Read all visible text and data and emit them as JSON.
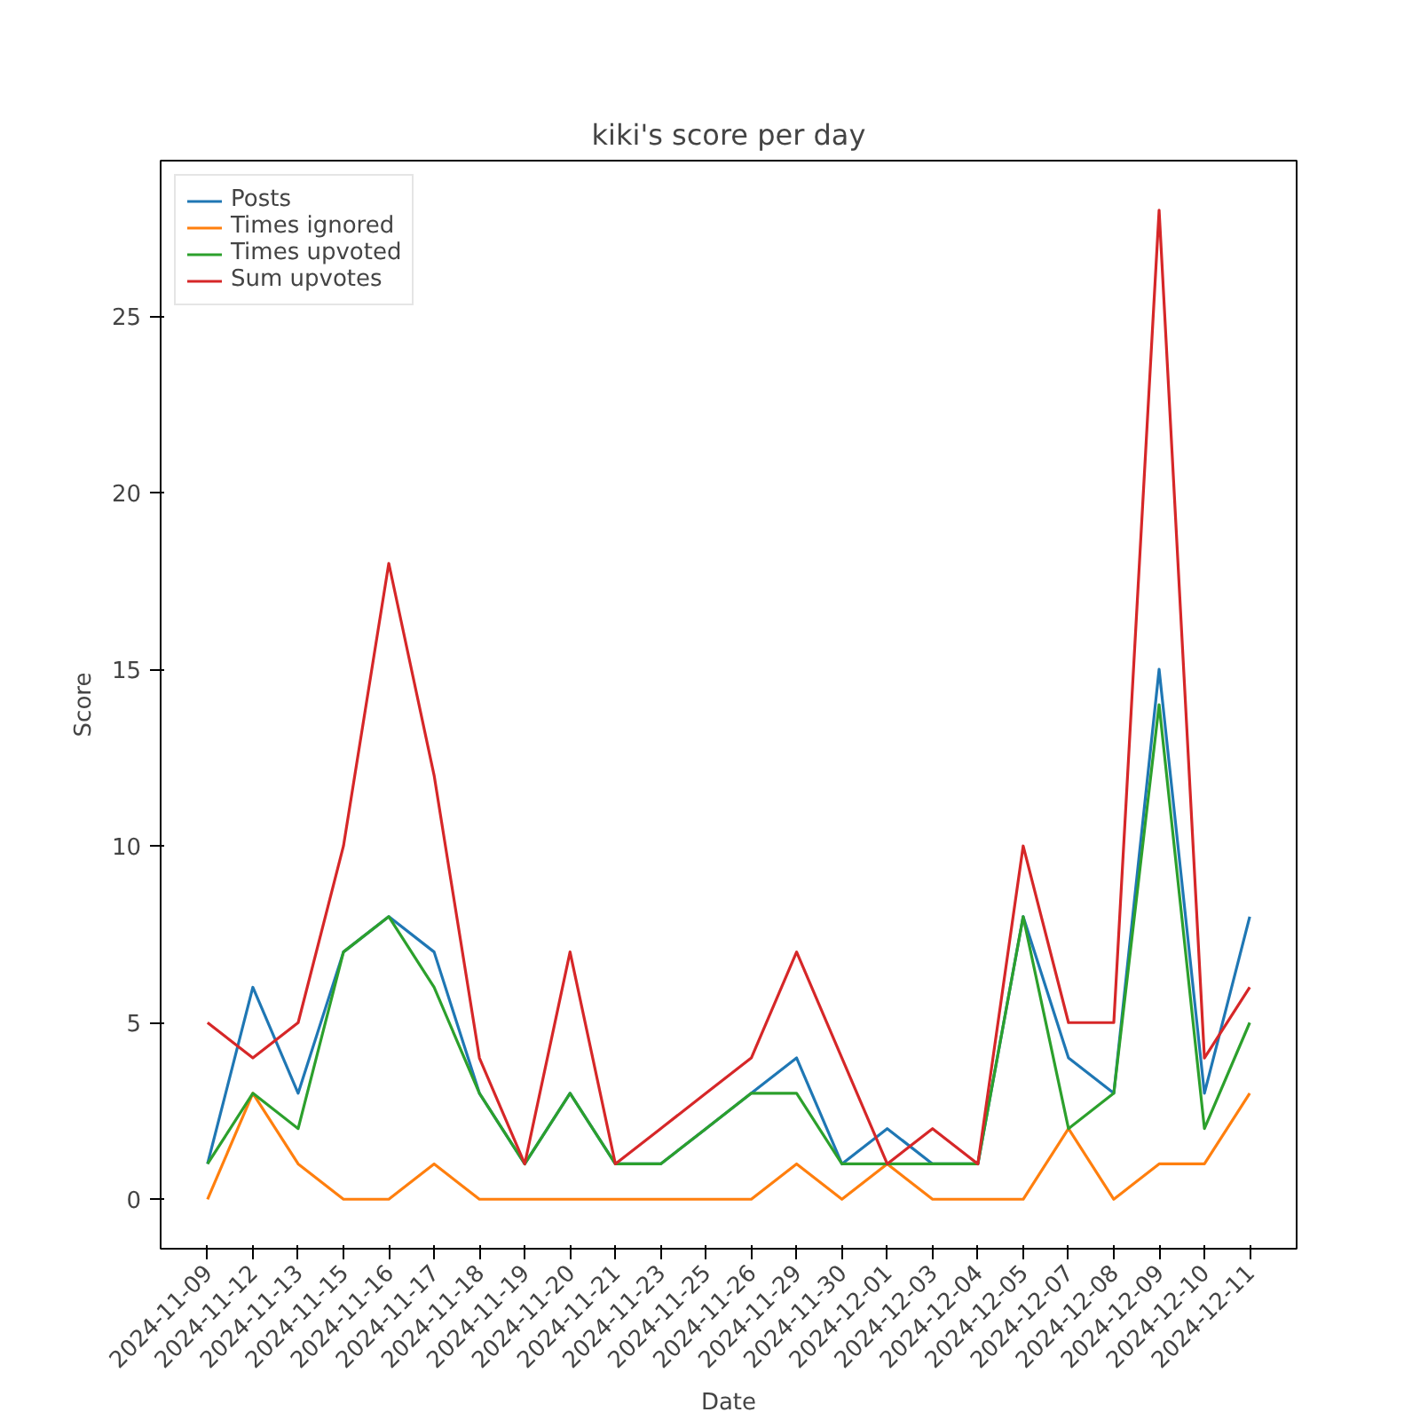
{
  "chart_data": {
    "type": "line",
    "title": "kiki's score per day",
    "xlabel": "Date",
    "ylabel": "Score",
    "categories": [
      "2024-11-09",
      "2024-11-12",
      "2024-11-13",
      "2024-11-15",
      "2024-11-16",
      "2024-11-17",
      "2024-11-18",
      "2024-11-19",
      "2024-11-20",
      "2024-11-21",
      "2024-11-23",
      "2024-11-25",
      "2024-11-26",
      "2024-11-29",
      "2024-11-30",
      "2024-12-01",
      "2024-12-03",
      "2024-12-04",
      "2024-12-05",
      "2024-12-07",
      "2024-12-08",
      "2024-12-09",
      "2024-12-10",
      "2024-12-11"
    ],
    "series": [
      {
        "name": "Posts",
        "color": "#1f77b4",
        "values": [
          1,
          6,
          3,
          7,
          8,
          7,
          3,
          1,
          3,
          1,
          1,
          2,
          3,
          4,
          1,
          2,
          1,
          1,
          8,
          4,
          3,
          15,
          3,
          8
        ]
      },
      {
        "name": "Times ignored",
        "color": "#ff7f0e",
        "values": [
          0,
          3,
          1,
          0,
          0,
          1,
          0,
          0,
          0,
          0,
          0,
          0,
          0,
          1,
          0,
          1,
          0,
          0,
          0,
          2,
          0,
          1,
          1,
          3
        ]
      },
      {
        "name": "Times upvoted",
        "color": "#2ca02c",
        "values": [
          1,
          3,
          2,
          7,
          8,
          6,
          3,
          1,
          3,
          1,
          1,
          2,
          3,
          3,
          1,
          1,
          1,
          1,
          8,
          2,
          3,
          14,
          2,
          5
        ]
      },
      {
        "name": "Sum upvotes",
        "color": "#d62728",
        "values": [
          5,
          4,
          5,
          10,
          18,
          12,
          4,
          1,
          7,
          1,
          2,
          3,
          4,
          7,
          4,
          1,
          2,
          1,
          10,
          5,
          5,
          28,
          4,
          6
        ]
      }
    ],
    "ylim": [
      -1.4,
      29.4
    ],
    "yticks": [
      0,
      5,
      10,
      15,
      20,
      25
    ],
    "legend": "top left",
    "grid": false,
    "marker": "none",
    "line_style": "solid"
  }
}
